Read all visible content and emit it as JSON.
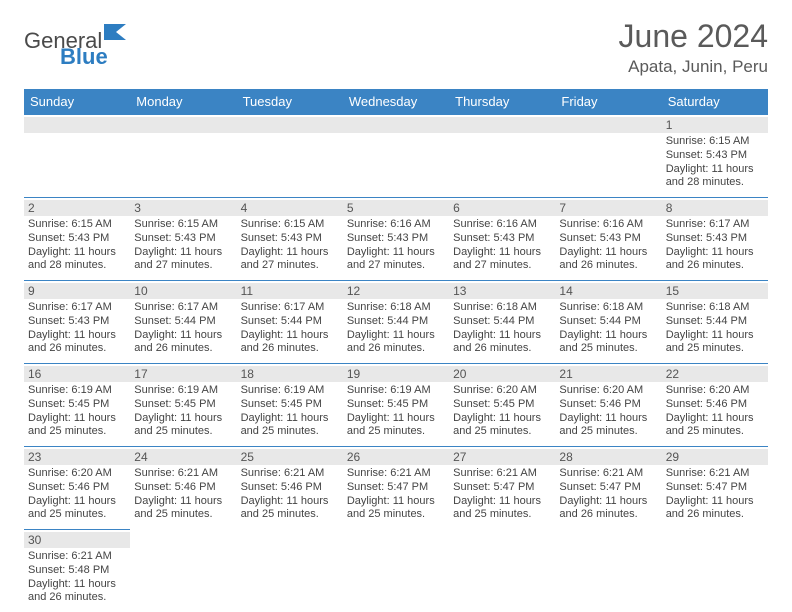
{
  "logo": {
    "general": "General",
    "blue": "Blue",
    "flag_color": "#2d7dc1"
  },
  "title": "June 2024",
  "location": "Apata, Junin, Peru",
  "header_bg": "#3b84c4",
  "daynum_bg": "#e8e8e8",
  "border_color": "#3b84c4",
  "daysOfWeek": [
    "Sunday",
    "Monday",
    "Tuesday",
    "Wednesday",
    "Thursday",
    "Friday",
    "Saturday"
  ],
  "labels": {
    "sunrise": "Sunrise:",
    "sunset": "Sunset:",
    "daylight": "Daylight:"
  },
  "weeks": [
    [
      null,
      null,
      null,
      null,
      null,
      null,
      {
        "n": "1",
        "sr": "6:15 AM",
        "ss": "5:43 PM",
        "dl": "11 hours and 28 minutes."
      }
    ],
    [
      {
        "n": "2",
        "sr": "6:15 AM",
        "ss": "5:43 PM",
        "dl": "11 hours and 28 minutes."
      },
      {
        "n": "3",
        "sr": "6:15 AM",
        "ss": "5:43 PM",
        "dl": "11 hours and 27 minutes."
      },
      {
        "n": "4",
        "sr": "6:15 AM",
        "ss": "5:43 PM",
        "dl": "11 hours and 27 minutes."
      },
      {
        "n": "5",
        "sr": "6:16 AM",
        "ss": "5:43 PM",
        "dl": "11 hours and 27 minutes."
      },
      {
        "n": "6",
        "sr": "6:16 AM",
        "ss": "5:43 PM",
        "dl": "11 hours and 27 minutes."
      },
      {
        "n": "7",
        "sr": "6:16 AM",
        "ss": "5:43 PM",
        "dl": "11 hours and 26 minutes."
      },
      {
        "n": "8",
        "sr": "6:17 AM",
        "ss": "5:43 PM",
        "dl": "11 hours and 26 minutes."
      }
    ],
    [
      {
        "n": "9",
        "sr": "6:17 AM",
        "ss": "5:43 PM",
        "dl": "11 hours and 26 minutes."
      },
      {
        "n": "10",
        "sr": "6:17 AM",
        "ss": "5:44 PM",
        "dl": "11 hours and 26 minutes."
      },
      {
        "n": "11",
        "sr": "6:17 AM",
        "ss": "5:44 PM",
        "dl": "11 hours and 26 minutes."
      },
      {
        "n": "12",
        "sr": "6:18 AM",
        "ss": "5:44 PM",
        "dl": "11 hours and 26 minutes."
      },
      {
        "n": "13",
        "sr": "6:18 AM",
        "ss": "5:44 PM",
        "dl": "11 hours and 26 minutes."
      },
      {
        "n": "14",
        "sr": "6:18 AM",
        "ss": "5:44 PM",
        "dl": "11 hours and 25 minutes."
      },
      {
        "n": "15",
        "sr": "6:18 AM",
        "ss": "5:44 PM",
        "dl": "11 hours and 25 minutes."
      }
    ],
    [
      {
        "n": "16",
        "sr": "6:19 AM",
        "ss": "5:45 PM",
        "dl": "11 hours and 25 minutes."
      },
      {
        "n": "17",
        "sr": "6:19 AM",
        "ss": "5:45 PM",
        "dl": "11 hours and 25 minutes."
      },
      {
        "n": "18",
        "sr": "6:19 AM",
        "ss": "5:45 PM",
        "dl": "11 hours and 25 minutes."
      },
      {
        "n": "19",
        "sr": "6:19 AM",
        "ss": "5:45 PM",
        "dl": "11 hours and 25 minutes."
      },
      {
        "n": "20",
        "sr": "6:20 AM",
        "ss": "5:45 PM",
        "dl": "11 hours and 25 minutes."
      },
      {
        "n": "21",
        "sr": "6:20 AM",
        "ss": "5:46 PM",
        "dl": "11 hours and 25 minutes."
      },
      {
        "n": "22",
        "sr": "6:20 AM",
        "ss": "5:46 PM",
        "dl": "11 hours and 25 minutes."
      }
    ],
    [
      {
        "n": "23",
        "sr": "6:20 AM",
        "ss": "5:46 PM",
        "dl": "11 hours and 25 minutes."
      },
      {
        "n": "24",
        "sr": "6:21 AM",
        "ss": "5:46 PM",
        "dl": "11 hours and 25 minutes."
      },
      {
        "n": "25",
        "sr": "6:21 AM",
        "ss": "5:46 PM",
        "dl": "11 hours and 25 minutes."
      },
      {
        "n": "26",
        "sr": "6:21 AM",
        "ss": "5:47 PM",
        "dl": "11 hours and 25 minutes."
      },
      {
        "n": "27",
        "sr": "6:21 AM",
        "ss": "5:47 PM",
        "dl": "11 hours and 25 minutes."
      },
      {
        "n": "28",
        "sr": "6:21 AM",
        "ss": "5:47 PM",
        "dl": "11 hours and 26 minutes."
      },
      {
        "n": "29",
        "sr": "6:21 AM",
        "ss": "5:47 PM",
        "dl": "11 hours and 26 minutes."
      }
    ],
    [
      {
        "n": "30",
        "sr": "6:21 AM",
        "ss": "5:48 PM",
        "dl": "11 hours and 26 minutes."
      },
      null,
      null,
      null,
      null,
      null,
      null
    ]
  ]
}
